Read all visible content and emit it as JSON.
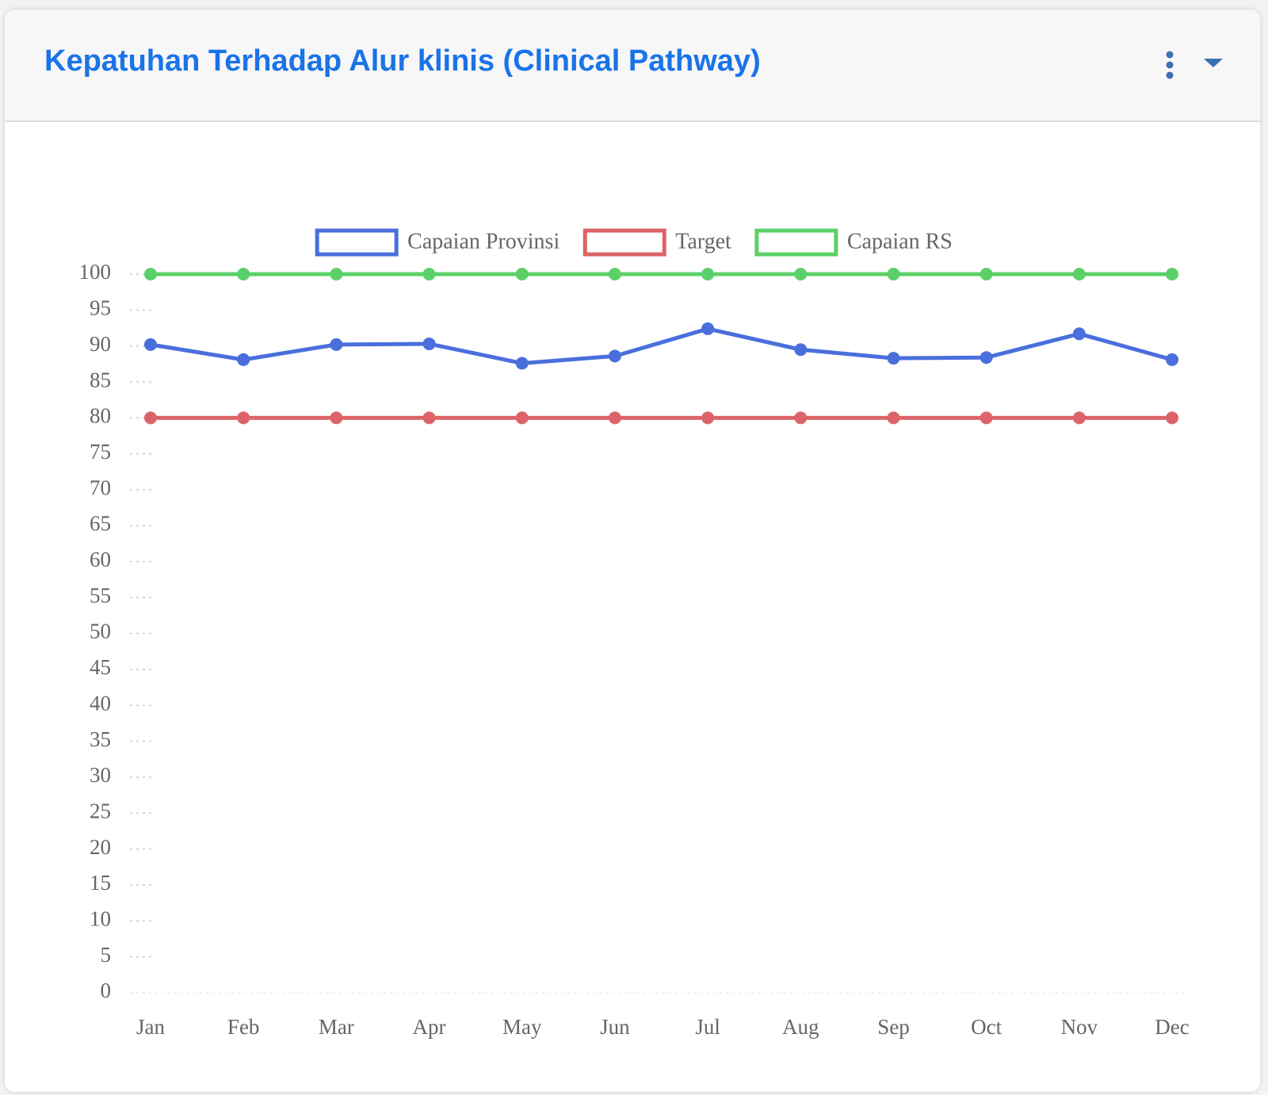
{
  "chart_data": {
    "type": "line",
    "title": "Kepatuhan Terhadap Alur klinis (Clinical Pathway)",
    "categories": [
      "Jan",
      "Feb",
      "Mar",
      "Apr",
      "May",
      "Jun",
      "Jul",
      "Aug",
      "Sep",
      "Oct",
      "Nov",
      "Dec"
    ],
    "series": [
      {
        "name": "Capaian Provinsi",
        "color": "#4a6fdc",
        "values": [
          90.2,
          88.1,
          90.2,
          90.3,
          87.6,
          88.6,
          92.4,
          89.5,
          88.3,
          88.4,
          91.7,
          88.1
        ]
      },
      {
        "name": "Target",
        "color": "#dc6468",
        "values": [
          80,
          80,
          80,
          80,
          80,
          80,
          80,
          80,
          80,
          80,
          80,
          80
        ]
      },
      {
        "name": "Capaian RS",
        "color": "#5cd068",
        "values": [
          100,
          100,
          100,
          100,
          100,
          100,
          100,
          100,
          100,
          100,
          100,
          100
        ]
      }
    ],
    "ylim": [
      0,
      100
    ],
    "yticks": [
      0,
      5,
      10,
      15,
      20,
      25,
      30,
      35,
      40,
      45,
      50,
      55,
      60,
      65,
      70,
      75,
      80,
      85,
      90,
      95,
      100
    ],
    "legend": "top"
  }
}
